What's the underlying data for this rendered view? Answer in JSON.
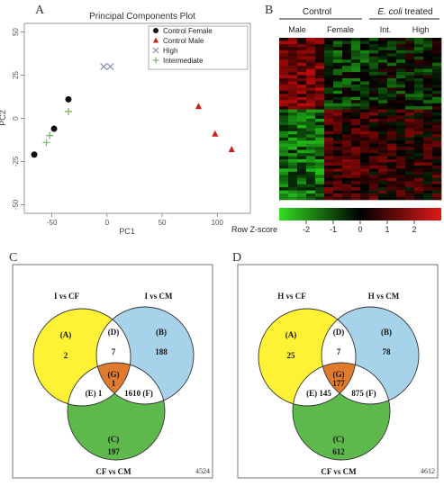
{
  "panels": {
    "a": {
      "letter": "A",
      "chart_data": {
        "type": "scatter",
        "title": "Principal Components Plot",
        "xlabel": "PC1",
        "ylabel": "PC2",
        "xlim": [
          -75,
          130
        ],
        "ylim": [
          -55,
          55
        ],
        "x_ticks": [
          "-50",
          "0",
          "50",
          "100"
        ],
        "x_tick_values": [
          -50,
          0,
          50,
          100
        ],
        "y_ticks": [
          "50",
          "25",
          "0",
          "-25",
          "-50"
        ],
        "y_tick_values": [
          50,
          25,
          0,
          -25,
          -50
        ],
        "legend_position": "top-right",
        "series": [
          {
            "name": "Control Female",
            "marker": "circle",
            "color": "#111111",
            "points": [
              [
                -35,
                11
              ],
              [
                -48,
                -6
              ],
              [
                -66,
                -21
              ]
            ]
          },
          {
            "name": "Control Male",
            "marker": "triangle",
            "color": "#cc1f1f",
            "points": [
              [
                83,
                7
              ],
              [
                98,
                -9
              ],
              [
                113,
                -18
              ]
            ]
          },
          {
            "name": "High",
            "marker": "x",
            "color": "#8a8fb0",
            "points": [
              [
                -3,
                30
              ],
              [
                3,
                30
              ]
            ]
          },
          {
            "name": "Intermediate",
            "marker": "plus",
            "color": "#7fb86a",
            "points": [
              [
                -35,
                4
              ],
              [
                -52,
                -10
              ],
              [
                -55,
                -14
              ]
            ]
          }
        ]
      }
    },
    "b": {
      "letter": "B",
      "group_control": "Control",
      "group_ecoli_italic": "E. coli",
      "group_ecoli_rest": " treated",
      "col_male": "Male",
      "col_female": "Female",
      "col_int": "Int.",
      "col_high": "High",
      "colorbar_label": "Row Z-score",
      "colorbar_ticks": [
        "-2",
        "-1",
        "0",
        "1",
        "2"
      ],
      "colorbar_tick_values": [
        -2,
        -1,
        0,
        1,
        2
      ],
      "colorbar_range": [
        -3,
        3
      ],
      "colors": {
        "low": "#22cc22",
        "mid": "#000000",
        "high": "#dd1111"
      }
    },
    "c": {
      "letter": "C",
      "label_left": "I vs CF",
      "label_right": "I vs CM",
      "label_bottom": "CF vs CM",
      "corner_total": "4524",
      "regions": {
        "A": {
          "label": "(A)",
          "value": "2"
        },
        "B": {
          "label": "(B)",
          "value": "188"
        },
        "C": {
          "label": "(C)",
          "value": "197"
        },
        "D": {
          "label": "(D)",
          "value": "7"
        },
        "E": {
          "label": "(E)",
          "value": "1"
        },
        "F": {
          "label": "(F)",
          "value": "1610"
        },
        "G": {
          "label": "(G)",
          "value": "1"
        }
      },
      "colors": {
        "left": "#fff234",
        "right": "#a7d3ea",
        "bottom": "#5eb84c",
        "center": "#e07b2e",
        "pair": "#ffffff"
      }
    },
    "d": {
      "letter": "D",
      "label_left": "H vs CF",
      "label_right": "H vs CM",
      "label_bottom": "CF vs CM",
      "corner_total": "4612",
      "regions": {
        "A": {
          "label": "(A)",
          "value": "25"
        },
        "B": {
          "label": "(B)",
          "value": "78"
        },
        "C": {
          "label": "(C)",
          "value": "612"
        },
        "D": {
          "label": "(D)",
          "value": "7"
        },
        "E": {
          "label": "(E)",
          "value": "145"
        },
        "F": {
          "label": "(F)",
          "value": "875"
        },
        "G": {
          "label": "(G)",
          "value": "177"
        }
      },
      "colors": {
        "left": "#fff234",
        "right": "#a7d3ea",
        "bottom": "#5eb84c",
        "center": "#e07b2e",
        "pair": "#ffffff"
      }
    }
  }
}
